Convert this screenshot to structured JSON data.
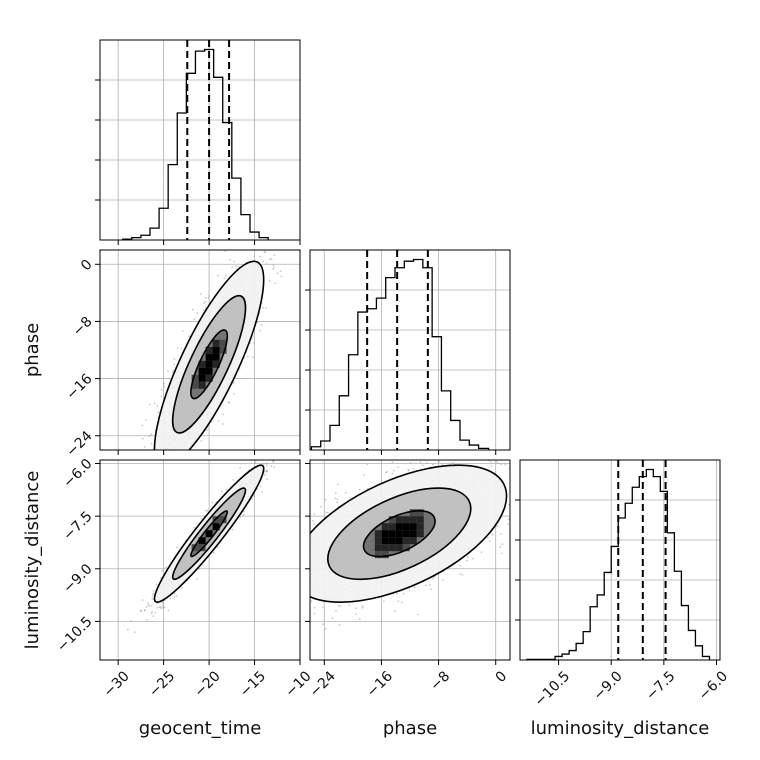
{
  "chart_data": {
    "type": "corner",
    "parameters": [
      "geocent_time",
      "phase",
      "luminosity_distance"
    ],
    "xlabels": [
      "geocent_time",
      "phase",
      "luminosity_distance"
    ],
    "ylabels": [
      "",
      "phase",
      "luminosity_distance"
    ],
    "ranges": [
      [
        -32,
        -10
      ],
      [
        -26,
        2
      ],
      [
        -11.6,
        -5.9
      ]
    ],
    "ticks": [
      [
        -30,
        -25,
        -20,
        -15,
        -10
      ],
      [
        -24,
        -16,
        -8,
        0
      ],
      [
        -10.5,
        -9.0,
        -7.5,
        -6.0
      ]
    ],
    "tick_labels": [
      [
        "−30",
        "−25",
        "−20",
        "−15",
        "−10"
      ],
      [
        "−24",
        "−16",
        "−8",
        "0"
      ],
      [
        "−10.5",
        "−9.0",
        "−7.5",
        "−6.0"
      ]
    ],
    "grid": true,
    "quantiles": [
      [
        -22.4,
        -20.0,
        -17.8
      ],
      [
        -18.0,
        -13.8,
        -9.5
      ],
      [
        -8.8,
        -8.1,
        -7.45
      ]
    ],
    "histograms": [
      {
        "parameter": "geocent_time",
        "bin_edges": [
          -29.5,
          -28.5,
          -27.5,
          -26.5,
          -25.5,
          -24.5,
          -23.5,
          -22.5,
          -21.5,
          -20.5,
          -19.5,
          -18.5,
          -17.5,
          -16.5,
          -15.5,
          -14.5,
          -13.5
        ],
        "counts": [
          1,
          3,
          6,
          15,
          40,
          95,
          160,
          210,
          238,
          240,
          205,
          148,
          78,
          32,
          10,
          3
        ]
      },
      {
        "parameter": "phase",
        "bin_edges": [
          -25.8,
          -24.5,
          -23.2,
          -21.9,
          -20.6,
          -19.3,
          -18.0,
          -16.7,
          -15.4,
          -14.1,
          -12.8,
          -11.5,
          -10.2,
          -8.9,
          -7.6,
          -6.3,
          -5.0,
          -3.7,
          -2.4,
          -1.0
        ],
        "counts": [
          4,
          11,
          30,
          66,
          116,
          168,
          172,
          185,
          210,
          222,
          230,
          232,
          222,
          138,
          72,
          36,
          12,
          6,
          2
        ]
      },
      {
        "parameter": "luminosity_distance",
        "bin_edges": [
          -11.4,
          -10.6,
          -10.4,
          -10.2,
          -10.0,
          -9.8,
          -9.6,
          -9.4,
          -9.2,
          -9.0,
          -8.8,
          -8.6,
          -8.4,
          -8.2,
          -8.0,
          -7.8,
          -7.6,
          -7.4,
          -7.2,
          -7.0,
          -6.8,
          -6.6,
          -6.4,
          -6.2
        ],
        "counts": [
          1,
          6,
          10,
          16,
          28,
          48,
          90,
          110,
          148,
          192,
          240,
          265,
          292,
          310,
          322,
          310,
          285,
          215,
          150,
          92,
          50,
          24,
          6
        ]
      }
    ],
    "scatter_2d": [
      {
        "x_param": "geocent_time",
        "y_param": "phase",
        "center": [
          -20.0,
          -14.0
        ],
        "sigma": [
          2.0,
          4.8
        ],
        "correlation": 0.82,
        "contour_levels": [
          0.394,
          0.865,
          0.989
        ]
      },
      {
        "x_param": "geocent_time",
        "y_param": "luminosity_distance",
        "center": [
          -20.0,
          -8.0
        ],
        "sigma": [
          2.0,
          0.65
        ],
        "correlation": 0.95,
        "contour_levels": [
          0.394,
          0.865,
          0.989
        ]
      },
      {
        "x_param": "phase",
        "y_param": "luminosity_distance",
        "center": [
          -13.5,
          -8.0
        ],
        "sigma": [
          5.0,
          0.65
        ],
        "correlation": 0.55,
        "contour_levels": [
          0.394,
          0.865,
          0.989
        ]
      }
    ]
  }
}
